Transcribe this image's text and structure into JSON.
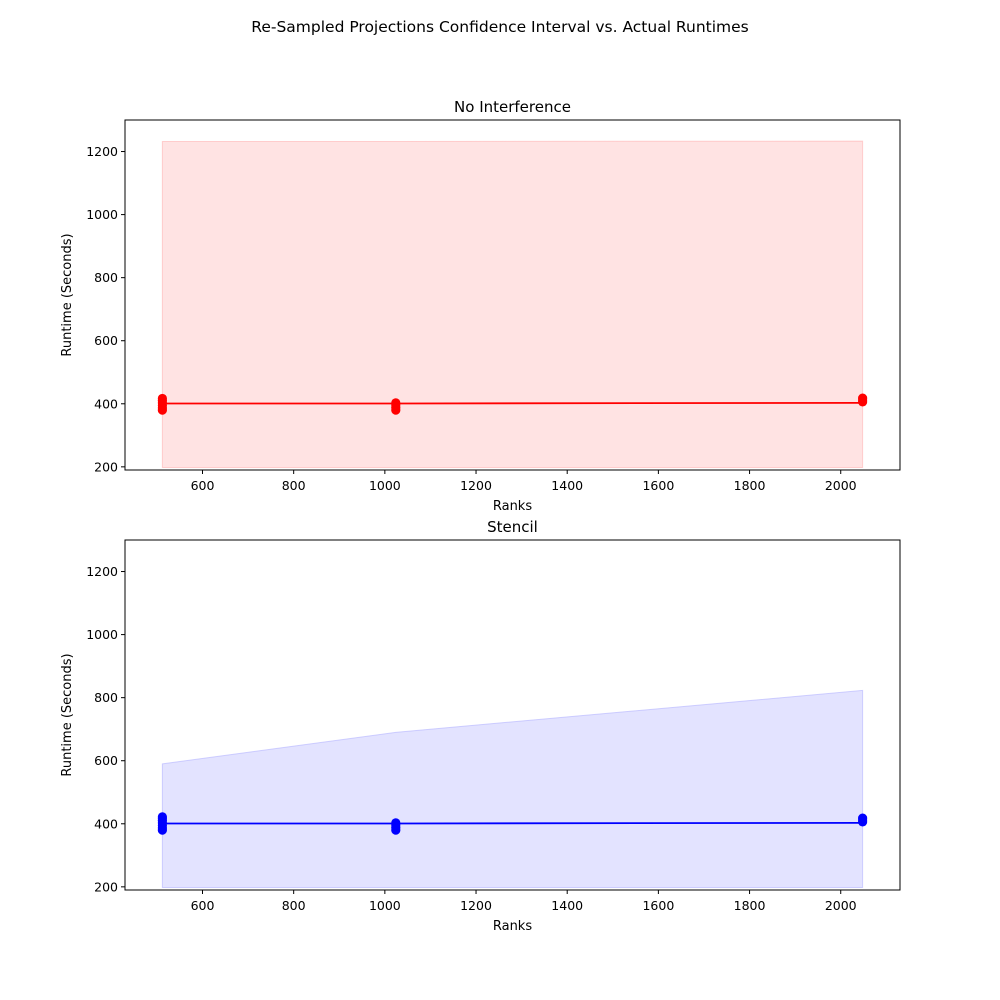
{
  "figure": {
    "title": "Re-Sampled Projections Confidence Interval vs. Actual Runtimes"
  },
  "chart_data": [
    {
      "type": "line",
      "title": "No Interference",
      "xlabel": "Ranks",
      "ylabel": "Runtime (Seconds)",
      "xlim": [
        430,
        2130
      ],
      "ylim": [
        190,
        1300
      ],
      "xticks": [
        600,
        800,
        1000,
        1200,
        1400,
        1600,
        1800,
        2000
      ],
      "yticks": [
        200,
        400,
        600,
        800,
        1000,
        1200
      ],
      "color": "#ff0000",
      "band_color": "#ffb3b3",
      "grid": false,
      "series": [
        {
          "x": [
            512,
            1024,
            2048
          ],
          "values": [
            401,
            401,
            403
          ]
        }
      ],
      "confidence_band": {
        "x": [
          512,
          1024,
          2048
        ],
        "lower": [
          198,
          198,
          198
        ],
        "upper": [
          1232,
          1232,
          1233
        ]
      },
      "actual_runtimes": [
        {
          "x": 512,
          "values": [
            380,
            387,
            395,
            403,
            410,
            417
          ]
        },
        {
          "x": 1024,
          "values": [
            380,
            388,
            396,
            403
          ]
        },
        {
          "x": 2048,
          "values": [
            406,
            412,
            418
          ]
        }
      ]
    },
    {
      "type": "line",
      "title": "Stencil",
      "xlabel": "Ranks",
      "ylabel": "Runtime (Seconds)",
      "xlim": [
        430,
        2130
      ],
      "ylim": [
        190,
        1300
      ],
      "xticks": [
        600,
        800,
        1000,
        1200,
        1400,
        1600,
        1800,
        2000
      ],
      "yticks": [
        200,
        400,
        600,
        800,
        1000,
        1200
      ],
      "color": "#0000ff",
      "band_color": "#b3b3ff",
      "grid": false,
      "series": [
        {
          "x": [
            512,
            1024,
            2048
          ],
          "values": [
            401,
            401,
            403
          ]
        }
      ],
      "confidence_band": {
        "x": [
          512,
          1024,
          2048
        ],
        "lower": [
          198,
          198,
          198
        ],
        "upper": [
          590,
          690,
          823
        ]
      },
      "actual_runtimes": [
        {
          "x": 512,
          "values": [
            380,
            387,
            395,
            403,
            410,
            417,
            422
          ]
        },
        {
          "x": 1024,
          "values": [
            380,
            388,
            396,
            403
          ]
        },
        {
          "x": 2048,
          "values": [
            406,
            412,
            418
          ]
        }
      ]
    }
  ]
}
